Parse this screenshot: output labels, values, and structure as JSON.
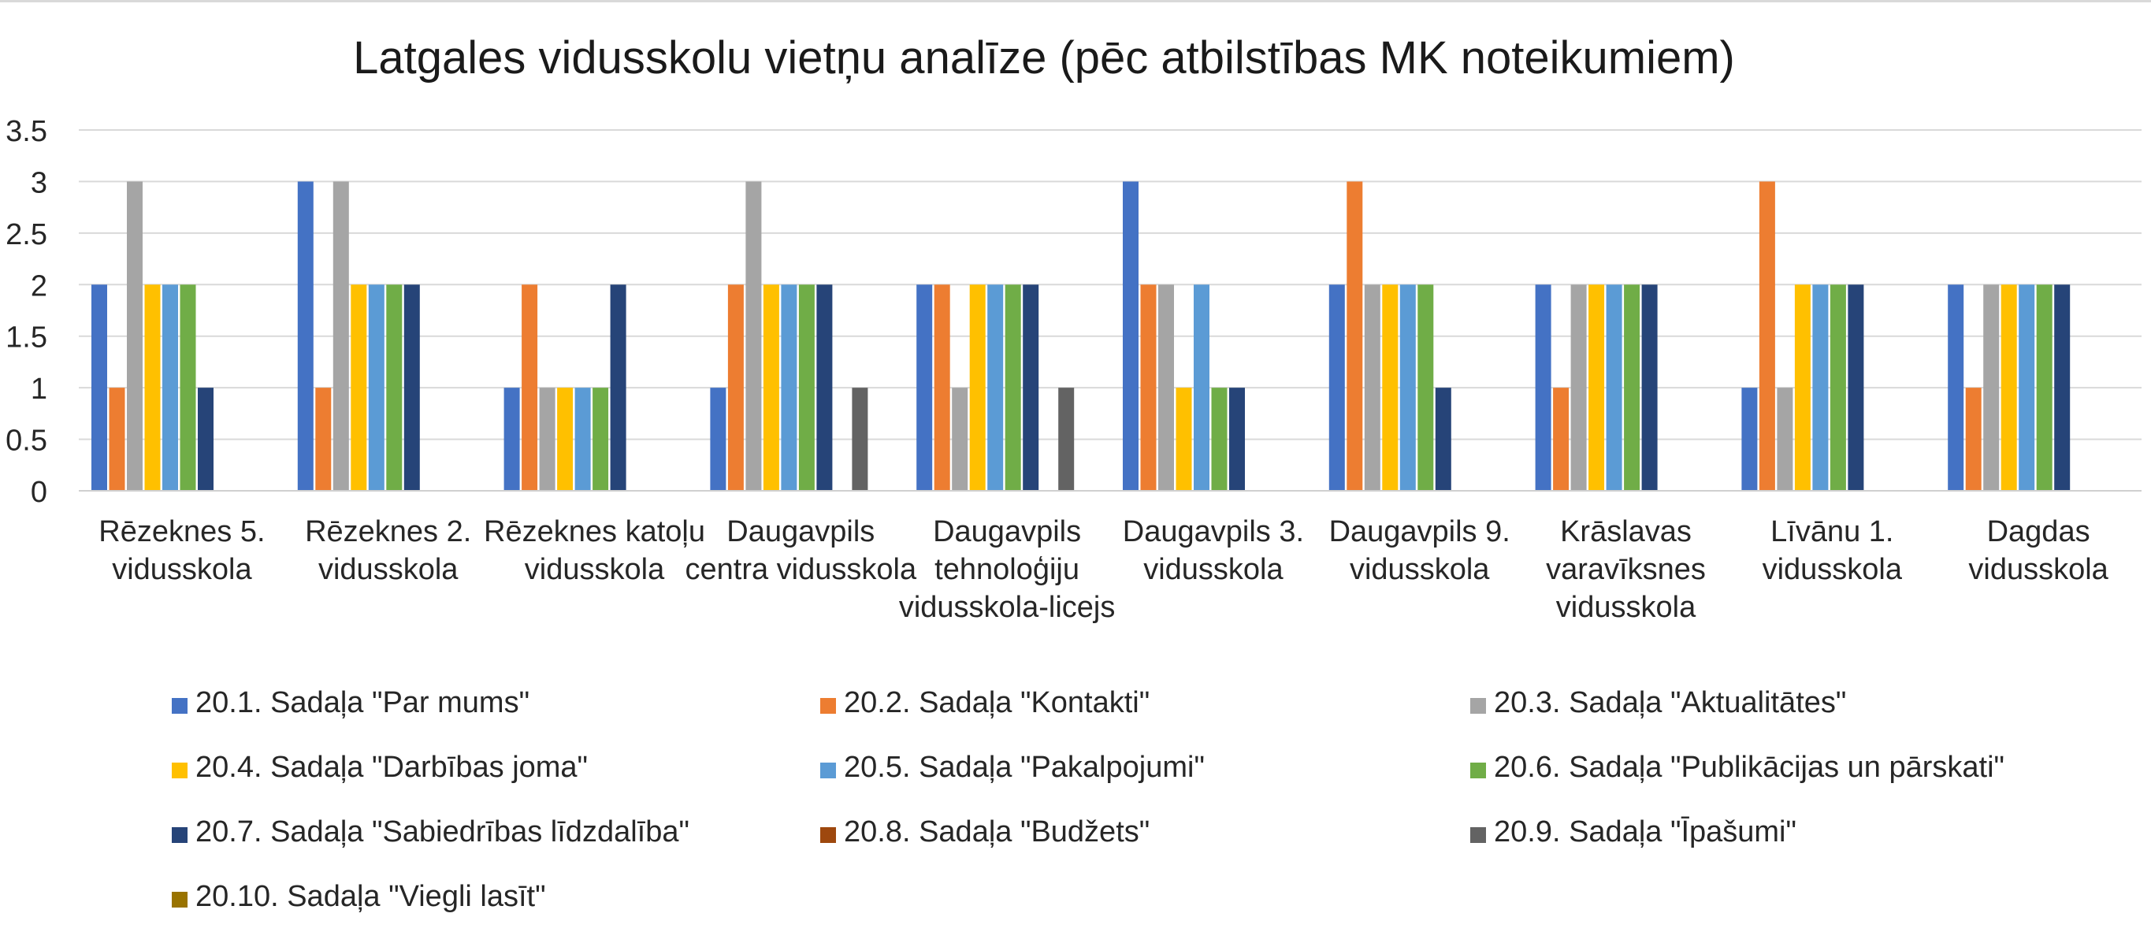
{
  "chart_data": {
    "type": "bar",
    "title": "Latgales vidusskolu vietņu analīze (pēc atbilstības MK noteikumiem)",
    "xlabel": "",
    "ylabel": "",
    "ylim": [
      0,
      3.5
    ],
    "yticks": [
      "0",
      "0.5",
      "1",
      "1.5",
      "2",
      "2.5",
      "3",
      "3.5"
    ],
    "grid": true,
    "legend_position": "bottom",
    "categories": [
      [
        "Rēzeknes 5.",
        "vidusskola"
      ],
      [
        "Rēzeknes 2.",
        "vidusskola"
      ],
      [
        "Rēzeknes katoļu",
        "vidusskola"
      ],
      [
        "Daugavpils",
        "centra vidusskola"
      ],
      [
        "Daugavpils",
        "tehnoloģiju",
        "vidusskola-licejs"
      ],
      [
        "Daugavpils 3.",
        "vidusskola"
      ],
      [
        "Daugavpils 9.",
        "vidusskola"
      ],
      [
        "Krāslavas",
        "varavīksnes",
        "vidusskola"
      ],
      [
        "Līvānu 1.",
        "vidusskola"
      ],
      [
        "Dagdas",
        "vidusskola"
      ]
    ],
    "series": [
      {
        "name": "20.1. Sadaļa \"Par mums\"",
        "color": "#4472c4",
        "values": [
          2,
          3,
          1,
          1,
          2,
          3,
          2,
          2,
          1,
          2
        ]
      },
      {
        "name": "20.2. Sadaļa \"Kontakti\"",
        "color": "#ed7d31",
        "values": [
          1,
          1,
          2,
          2,
          2,
          2,
          3,
          1,
          3,
          1
        ]
      },
      {
        "name": "20.3. Sadaļa \"Aktualitātes\"",
        "color": "#a5a5a5",
        "values": [
          3,
          3,
          1,
          3,
          1,
          2,
          2,
          2,
          1,
          2
        ]
      },
      {
        "name": "20.4. Sadaļa \"Darbības joma\"",
        "color": "#ffc000",
        "values": [
          2,
          2,
          1,
          2,
          2,
          1,
          2,
          2,
          2,
          2
        ]
      },
      {
        "name": "20.5. Sadaļa \"Pakalpojumi\"",
        "color": "#5b9bd5",
        "values": [
          2,
          2,
          1,
          2,
          2,
          2,
          2,
          2,
          2,
          2
        ]
      },
      {
        "name": "20.6. Sadaļa \"Publikācijas un pārskati\"",
        "color": "#70ad47",
        "values": [
          2,
          2,
          1,
          2,
          2,
          1,
          2,
          2,
          2,
          2
        ]
      },
      {
        "name": "20.7. Sadaļa \"Sabiedrības līdzdalība\"",
        "color": "#264478",
        "values": [
          1,
          2,
          2,
          2,
          2,
          1,
          1,
          2,
          2,
          2
        ]
      },
      {
        "name": "20.8. Sadaļa \"Budžets\"",
        "color": "#9e480e",
        "values": [
          0,
          0,
          0,
          0,
          0,
          0,
          0,
          0,
          0,
          0
        ]
      },
      {
        "name": "20.9. Sadaļa \"Īpašumi\"",
        "color": "#636363",
        "values": [
          0,
          0,
          0,
          1,
          1,
          0,
          0,
          0,
          0,
          0
        ]
      },
      {
        "name": "20.10. Sadaļa \"Viegli lasīt\"",
        "color": "#997300",
        "values": [
          0,
          0,
          0,
          0,
          0,
          0,
          0,
          0,
          0,
          0
        ]
      }
    ]
  }
}
